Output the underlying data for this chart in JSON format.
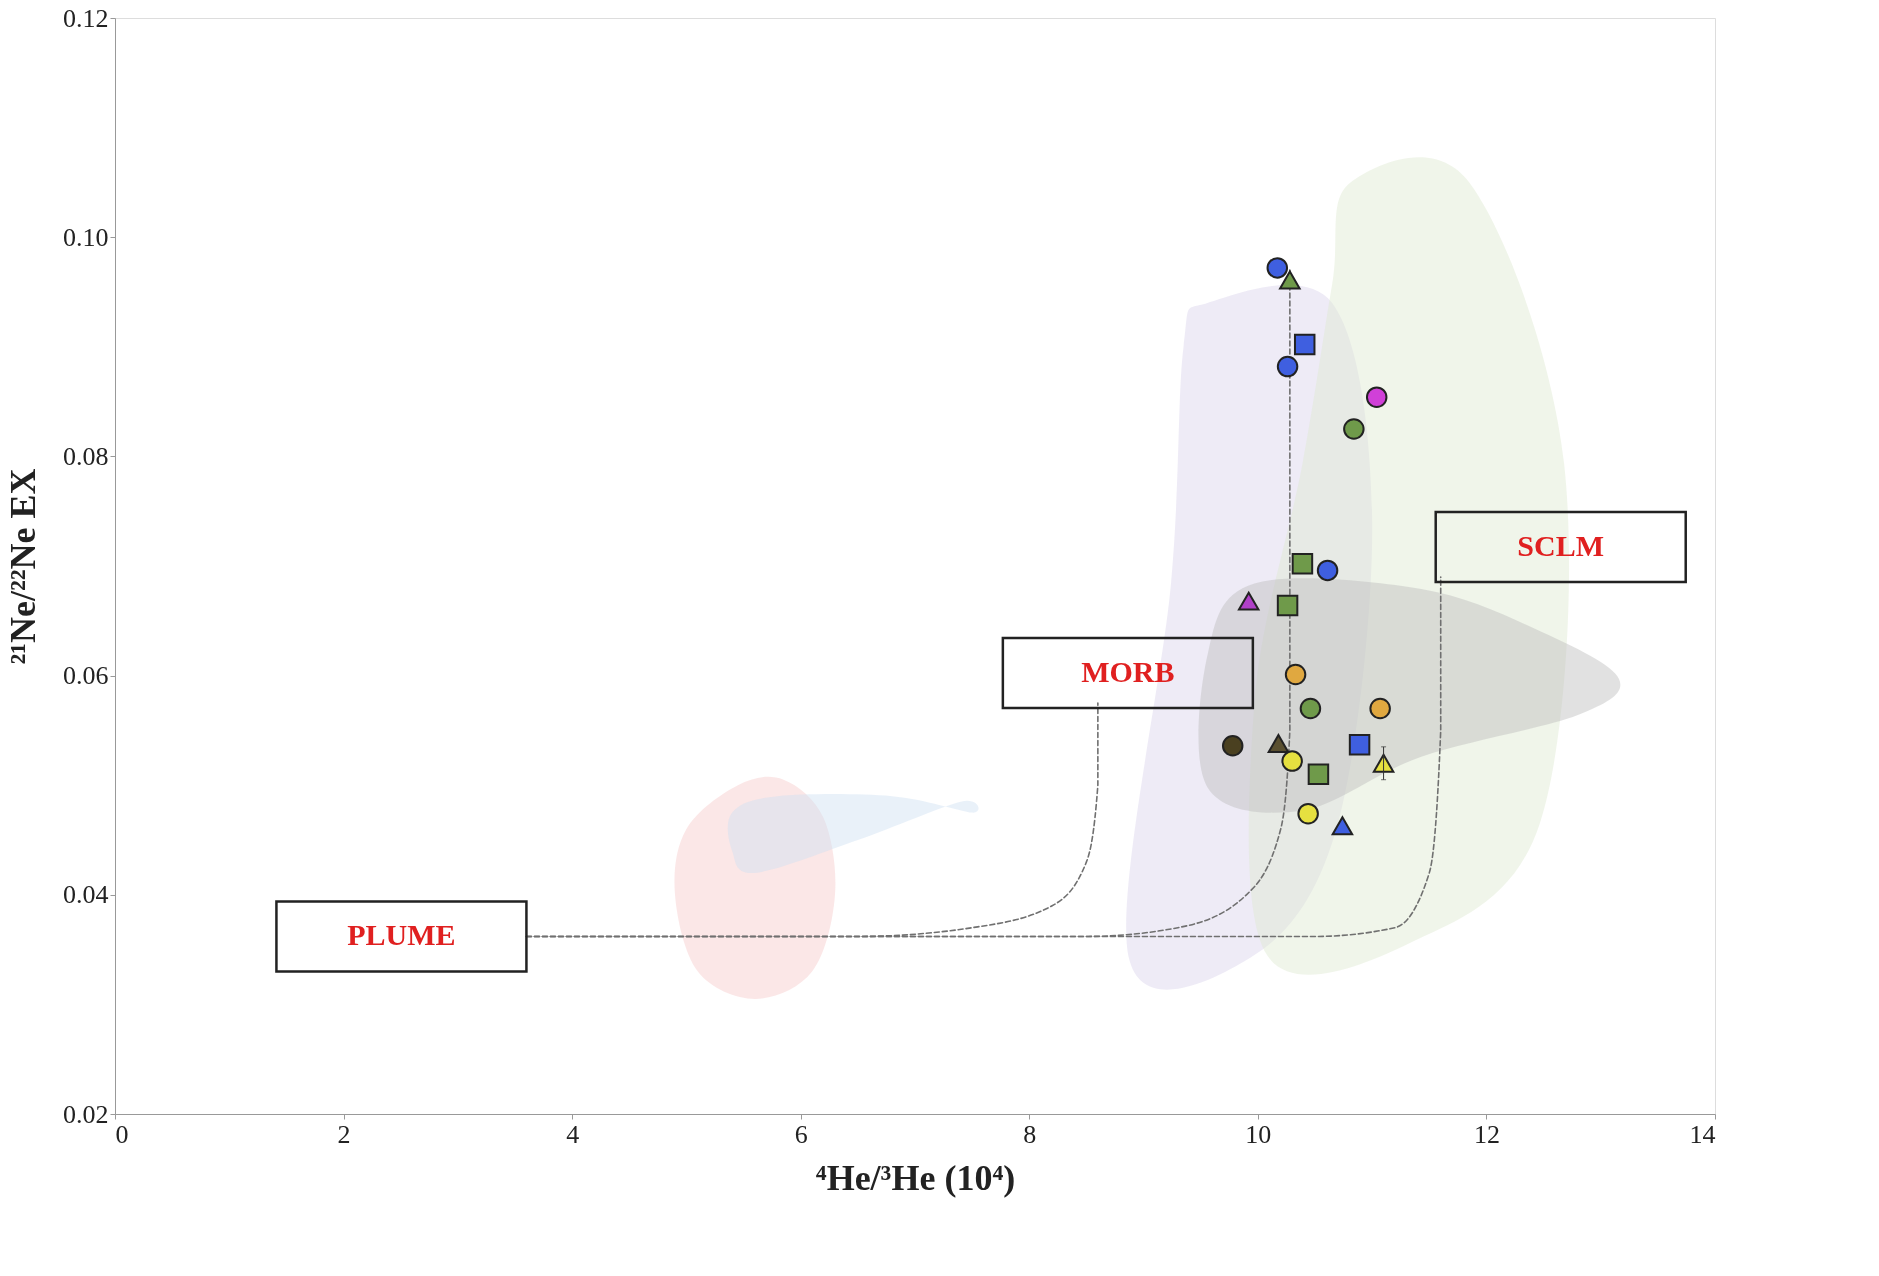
{
  "chart_data": {
    "type": "scatter",
    "xlabel": "⁴He/³He (10⁴)",
    "ylabel": "²¹Ne/²²Ne EX",
    "xlim": [
      0,
      14
    ],
    "xticks": [
      0,
      2,
      4,
      6,
      8,
      10,
      12,
      14
    ],
    "ylim": [
      0.02,
      0.12
    ],
    "yticks": [
      0.02,
      0.04,
      0.06,
      0.08,
      {
        "value": 0.1,
        "label": "0.10"
      },
      {
        "value": 0.12,
        "label": "0.12"
      }
    ],
    "grid": false,
    "series": [
      {
        "type": "area",
        "color": "#f6c9c9",
        "x": [
          5.0,
          5.45,
          5.85,
          6.2,
          6.3,
          6.1,
          5.6,
          5.1,
          4.9
        ],
        "values": [
          0.046,
          0.05,
          0.0505,
          0.047,
          0.04,
          0.033,
          0.0305,
          0.033,
          0.04
        ]
      },
      {
        "type": "area",
        "color": "#cfe0f2",
        "x": [
          5.4,
          5.6,
          6.5,
          7.4,
          7.5,
          6.8,
          5.8,
          5.4
        ],
        "values": [
          0.044,
          0.042,
          0.045,
          0.0485,
          0.0475,
          0.049,
          0.049,
          0.0475
        ]
      },
      {
        "type": "area",
        "color": "#d9d3ec",
        "x": [
          9.56,
          10.65,
          11.0,
          10.7,
          9.97,
          8.87,
          9.24,
          9.35
        ],
        "values": [
          0.094,
          0.094,
          0.074,
          0.0465,
          0.0345,
          0.0343,
          0.0684,
          0.09
        ]
      },
      {
        "type": "area",
        "color": "#dde9d0",
        "x": [
          10.81,
          11.85,
          12.68,
          12.47,
          11.33,
          10.08,
          9.97,
          10.39,
          10.65
        ],
        "values": [
          0.105,
          0.105,
          0.0793,
          0.0466,
          0.0356,
          0.0345,
          0.0575,
          0.0793,
          0.0957
        ]
      },
      {
        "type": "area",
        "color": "#bdbdbd",
        "x": [
          9.56,
          9.97,
          11.43,
          12.48,
          13.16,
          12.8,
          11.43,
          10.39,
          9.56
        ],
        "values": [
          0.0619,
          0.0684,
          0.0679,
          0.064,
          0.0597,
          0.0564,
          0.0526,
          0.0477,
          0.0498
        ]
      },
      {
        "type": "line",
        "color": "#707070",
        "line_style": "dashed",
        "x": [
          3.6,
          6.5,
          7.5,
          8.2,
          8.5,
          8.6,
          8.6
        ],
        "values": [
          0.0362,
          0.0362,
          0.037,
          0.039,
          0.043,
          0.05,
          0.0575
        ]
      },
      {
        "type": "line",
        "color": "#707070",
        "line_style": "dashed",
        "x": [
          3.6,
          8.5,
          9.3,
          9.9,
          10.2,
          10.28,
          10.28
        ],
        "values": [
          0.0362,
          0.0362,
          0.037,
          0.04,
          0.046,
          0.055,
          0.097
        ]
      },
      {
        "type": "line",
        "color": "#707070",
        "line_style": "dashed",
        "x": [
          3.6,
          10.5,
          11.2,
          11.5,
          11.6,
          11.6
        ],
        "values": [
          0.0362,
          0.0362,
          0.037,
          0.042,
          0.055,
          0.069
        ]
      },
      {
        "marker": "circle",
        "color": "#3f5fe0",
        "x": [
          10.17,
          10.26,
          10.61
        ],
        "values": [
          0.0972,
          0.0882,
          0.0696
        ]
      },
      {
        "marker": "square",
        "color": "#3f5fe0",
        "x": [
          10.41,
          10.89
        ],
        "values": [
          0.0902,
          0.0537
        ]
      },
      {
        "marker": "triangle",
        "color": "#3f5fe0",
        "x": [
          10.74
        ],
        "values": [
          0.0463
        ]
      },
      {
        "marker": "circle",
        "color": "#6f9a4a",
        "x": [
          10.84,
          10.46
        ],
        "values": [
          0.0825,
          0.057
        ]
      },
      {
        "marker": "square",
        "color": "#6f9a4a",
        "x": [
          10.39,
          10.26,
          10.53
        ],
        "values": [
          0.0702,
          0.0664,
          0.051
        ]
      },
      {
        "marker": "triangle",
        "color": "#6f9a4a",
        "x": [
          10.28
        ],
        "values": [
          0.0961
        ]
      },
      {
        "marker": "circle",
        "color": "#d040d8",
        "x": [
          11.04
        ],
        "values": [
          0.0854
        ]
      },
      {
        "marker": "triangle",
        "color": "#b040c8",
        "x": [
          9.92
        ],
        "values": [
          0.0668
        ]
      },
      {
        "marker": "circle",
        "color": "#e0a840",
        "x": [
          10.33,
          11.07
        ],
        "values": [
          0.0601,
          0.057
        ]
      },
      {
        "marker": "circle",
        "color": "#4a4020",
        "x": [
          9.78
        ],
        "values": [
          0.0536
        ]
      },
      {
        "marker": "triangle",
        "color": "#5a5030",
        "x": [
          10.18
        ],
        "values": [
          0.0538
        ]
      },
      {
        "marker": "circle",
        "color": "#e6e040",
        "x": [
          10.3,
          10.44
        ],
        "values": [
          0.0522,
          0.0474
        ]
      },
      {
        "marker": "triangle",
        "color": "#e6e040",
        "x": [
          11.1
        ],
        "values": [
          0.052
        ],
        "errors": [
          0.0015
        ]
      }
    ],
    "annotations": [
      {
        "text": "PLUME",
        "x": 3.6,
        "y": 0.0362
      },
      {
        "text": "MORB",
        "x": 8.6,
        "y": 0.0575
      },
      {
        "text": "SCLM",
        "x": 11.6,
        "y": 0.069
      }
    ]
  }
}
